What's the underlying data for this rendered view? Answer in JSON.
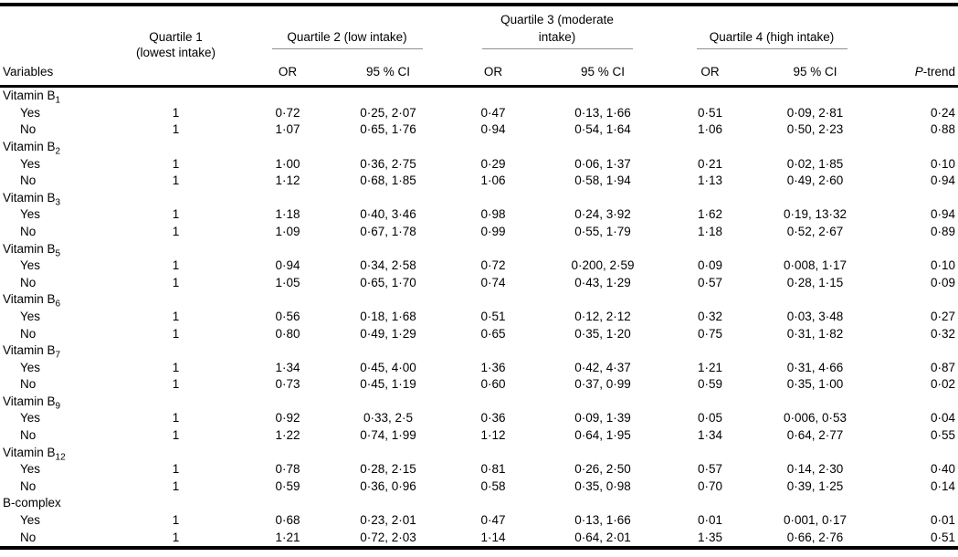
{
  "table": {
    "header": {
      "variables": "Variables",
      "q1_line1": "Quartile 1",
      "q1_line2": "(lowest intake)",
      "q2": "Quartile 2 (low intake)",
      "q3": "Quartile 3 (moderate intake)",
      "q4": "Quartile 4 (high intake)",
      "or": "OR",
      "ci": "95 % CI",
      "p_italic": "P",
      "p_rest": "-trend"
    },
    "groups": [
      {
        "label": "Vitamin B",
        "sub": "1",
        "rows": [
          {
            "name": "Yes",
            "q1": "1",
            "q2_or": "0·72",
            "q2_ci": "0·25, 2·07",
            "q3_or": "0·47",
            "q3_ci": "0·13, 1·66",
            "q4_or": "0·51",
            "q4_ci": "0·09, 2·81",
            "p": "0·24"
          },
          {
            "name": "No",
            "q1": "1",
            "q2_or": "1·07",
            "q2_ci": "0·65, 1·76",
            "q3_or": "0·94",
            "q3_ci": "0·54, 1·64",
            "q4_or": "1·06",
            "q4_ci": "0·50, 2·23",
            "p": "0·88"
          }
        ]
      },
      {
        "label": "Vitamin B",
        "sub": "2",
        "rows": [
          {
            "name": "Yes",
            "q1": "1",
            "q2_or": "1·00",
            "q2_ci": "0·36, 2·75",
            "q3_or": "0·29",
            "q3_ci": "0·06, 1·37",
            "q4_or": "0·21",
            "q4_ci": "0·02, 1·85",
            "p": "0·10"
          },
          {
            "name": "No",
            "q1": "1",
            "q2_or": "1·12",
            "q2_ci": "0·68, 1·85",
            "q3_or": "1·06",
            "q3_ci": "0·58, 1·94",
            "q4_or": "1·13",
            "q4_ci": "0·49, 2·60",
            "p": "0·94"
          }
        ]
      },
      {
        "label": "Vitamin B",
        "sub": "3",
        "rows": [
          {
            "name": "Yes",
            "q1": "1",
            "q2_or": "1·18",
            "q2_ci": "0·40, 3·46",
            "q3_or": "0·98",
            "q3_ci": "0·24, 3·92",
            "q4_or": "1·62",
            "q4_ci": "0·19, 13·32",
            "p": "0·94"
          },
          {
            "name": "No",
            "q1": "1",
            "q2_or": "1·09",
            "q2_ci": "0·67, 1·78",
            "q3_or": "0·99",
            "q3_ci": "0·55, 1·79",
            "q4_or": "1·18",
            "q4_ci": "0·52, 2·67",
            "p": "0·89"
          }
        ]
      },
      {
        "label": "Vitamin B",
        "sub": "5",
        "rows": [
          {
            "name": "Yes",
            "q1": "1",
            "q2_or": "0·94",
            "q2_ci": "0·34, 2·58",
            "q3_or": "0·72",
            "q3_ci": "0·200, 2·59",
            "q4_or": "0·09",
            "q4_ci": "0·008, 1·17",
            "p": "0·10"
          },
          {
            "name": "No",
            "q1": "1",
            "q2_or": "1·05",
            "q2_ci": "0·65, 1·70",
            "q3_or": "0·74",
            "q3_ci": "0·43, 1·29",
            "q4_or": "0·57",
            "q4_ci": "0·28, 1·15",
            "p": "0·09"
          }
        ]
      },
      {
        "label": "Vitamin B",
        "sub": "6",
        "rows": [
          {
            "name": "Yes",
            "q1": "1",
            "q2_or": "0·56",
            "q2_ci": "0·18, 1·68",
            "q3_or": "0·51",
            "q3_ci": "0·12, 2·12",
            "q4_or": "0·32",
            "q4_ci": "0·03, 3·48",
            "p": "0·27"
          },
          {
            "name": "No",
            "q1": "1",
            "q2_or": "0·80",
            "q2_ci": "0·49, 1·29",
            "q3_or": "0·65",
            "q3_ci": "0·35, 1·20",
            "q4_or": "0·75",
            "q4_ci": "0·31, 1·82",
            "p": "0·32"
          }
        ]
      },
      {
        "label": "Vitamin B",
        "sub": "7",
        "rows": [
          {
            "name": "Yes",
            "q1": "1",
            "q2_or": "1·34",
            "q2_ci": "0·45, 4·00",
            "q3_or": "1·36",
            "q3_ci": "0·42, 4·37",
            "q4_or": "1·21",
            "q4_ci": "0·31, 4·66",
            "p": "0·87"
          },
          {
            "name": "No",
            "q1": "1",
            "q2_or": "0·73",
            "q2_ci": "0·45, 1·19",
            "q3_or": "0·60",
            "q3_ci": "0·37, 0·99",
            "q4_or": "0·59",
            "q4_ci": "0·35, 1·00",
            "p": "0·02"
          }
        ]
      },
      {
        "label": "Vitamin B",
        "sub": "9",
        "rows": [
          {
            "name": "Yes",
            "q1": "1",
            "q2_or": "0·92",
            "q2_ci": "0·33, 2·5",
            "q3_or": "0·36",
            "q3_ci": "0·09, 1·39",
            "q4_or": "0·05",
            "q4_ci": "0·006, 0·53",
            "p": "0·04"
          },
          {
            "name": "No",
            "q1": "1",
            "q2_or": "1·22",
            "q2_ci": "0·74, 1·99",
            "q3_or": "1·12",
            "q3_ci": "0·64, 1·95",
            "q4_or": "1·34",
            "q4_ci": "0·64, 2·77",
            "p": "0·55"
          }
        ]
      },
      {
        "label": "Vitamin B",
        "sub": "12",
        "rows": [
          {
            "name": "Yes",
            "q1": "1",
            "q2_or": "0·78",
            "q2_ci": "0·28, 2·15",
            "q3_or": "0·81",
            "q3_ci": "0·26, 2·50",
            "q4_or": "0·57",
            "q4_ci": "0·14, 2·30",
            "p": "0·40"
          },
          {
            "name": "No",
            "q1": "1",
            "q2_or": "0·59",
            "q2_ci": "0·36, 0·96",
            "q3_or": "0·58",
            "q3_ci": "0·35, 0·98",
            "q4_or": "0·70",
            "q4_ci": "0·39, 1·25",
            "p": "0·14"
          }
        ]
      },
      {
        "label": "B-complex",
        "sub": "",
        "rows": [
          {
            "name": "Yes",
            "q1": "1",
            "q2_or": "0·68",
            "q2_ci": "0·23, 2·01",
            "q3_or": "0·47",
            "q3_ci": "0·13, 1·66",
            "q4_or": "0·01",
            "q4_ci": "0·001, 0·17",
            "p": "0·01"
          },
          {
            "name": "No",
            "q1": "1",
            "q2_or": "1·21",
            "q2_ci": "0·72, 2·03",
            "q3_or": "1·14",
            "q3_ci": "0·64, 2·01",
            "q4_or": "1·35",
            "q4_ci": "0·66, 2·76",
            "p": "0·51"
          }
        ]
      }
    ]
  }
}
